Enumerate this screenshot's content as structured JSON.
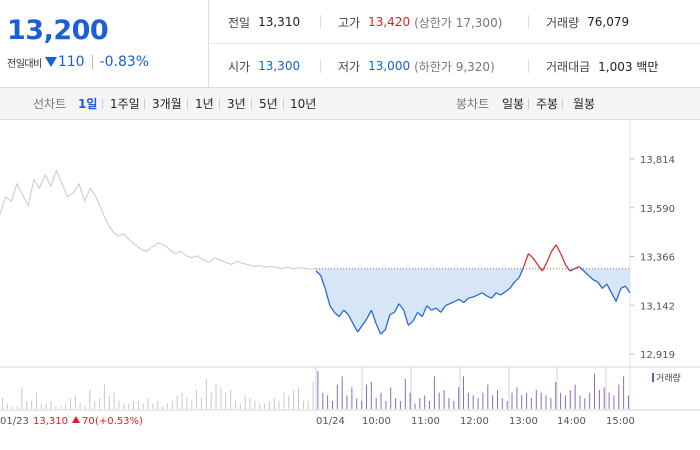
{
  "summary": {
    "current_price": "13,200",
    "change_label": "전일대비",
    "change_amount": "110",
    "change_percent": "-0.83%"
  },
  "stats": {
    "prev_close_label": "전일",
    "prev_close": "13,310",
    "high_label": "고가",
    "high": "13,420",
    "upper_limit": "(상한가 17,300)",
    "volume_label": "거래량",
    "volume": "76,079",
    "open_label": "시가",
    "open": "13,300",
    "low_label": "저가",
    "low": "13,000",
    "lower_limit": "(하한가 9,320)",
    "trade_value_label": "거래대금",
    "trade_value": "1,003 백만"
  },
  "toolbar": {
    "line_label": "선차트",
    "periods": [
      "1일",
      "1주일",
      "3개월",
      "1년",
      "3년",
      "5년",
      "10년"
    ],
    "active_period": "1일",
    "candle_label": "봉차트",
    "candles": [
      "일봉",
      "주봉",
      "월봉"
    ]
  },
  "colors": {
    "up": "#e02020",
    "down": "#1a5fd6",
    "fill": "#d6e6f7",
    "prev_day_line": "#c8c8c8"
  },
  "chart_data": {
    "type": "line",
    "y_ticks": [
      "13,814",
      "13,590",
      "13,366",
      "13,142",
      "12,919"
    ],
    "ylim": [
      12919,
      13814
    ],
    "base_price": 13310,
    "x_ticks": [
      "01/24",
      "10:00",
      "11:00",
      "12:00",
      "13:00",
      "14:00",
      "15:00"
    ],
    "prev_day_label": "01/23",
    "prev_day_close": "13,310",
    "prev_day_change": "70",
    "prev_day_change_pct": "(+0.53%)",
    "volume_legend": "거래량",
    "prev_day_series": [
      13560,
      13640,
      13620,
      13700,
      13650,
      13600,
      13720,
      13680,
      13740,
      13690,
      13760,
      13700,
      13640,
      13660,
      13700,
      13620,
      13680,
      13640,
      13580,
      13520,
      13480,
      13460,
      13470,
      13440,
      13420,
      13400,
      13390,
      13410,
      13430,
      13420,
      13400,
      13380,
      13390,
      13370,
      13360,
      13370,
      13350,
      13340,
      13360,
      13350,
      13340,
      13330,
      13345,
      13335,
      13330,
      13320,
      13325,
      13318,
      13322,
      13315,
      13312,
      13318,
      13310,
      13315,
      13312,
      13308,
      13310
    ],
    "today_series": [
      13300,
      13280,
      13220,
      13140,
      13110,
      13090,
      13120,
      13100,
      13060,
      13020,
      13050,
      13080,
      13120,
      13060,
      13010,
      13030,
      13100,
      13110,
      13150,
      13120,
      13050,
      13070,
      13110,
      13090,
      13140,
      13120,
      13130,
      13110,
      13140,
      13150,
      13160,
      13170,
      13155,
      13175,
      13180,
      13190,
      13200,
      13185,
      13175,
      13200,
      13190,
      13205,
      13220,
      13250,
      13270,
      13320,
      13380,
      13360,
      13330,
      13300,
      13340,
      13390,
      13420,
      13380,
      13330,
      13300,
      13310,
      13320,
      13300,
      13280,
      13260,
      13250,
      13220,
      13240,
      13200,
      13160,
      13220,
      13230,
      13200
    ],
    "volume_series": [
      4,
      2,
      1,
      1,
      8,
      3,
      3,
      6,
      2,
      2,
      3,
      1,
      1,
      2,
      4,
      5,
      2,
      1,
      7,
      3,
      4,
      9,
      5,
      6,
      3,
      2,
      2,
      3,
      3,
      2,
      4,
      2,
      3,
      1,
      2,
      3,
      5,
      6,
      4,
      3,
      7,
      4,
      11,
      6,
      9,
      8,
      6,
      7,
      3,
      2,
      5,
      4,
      3,
      2,
      2,
      3,
      4,
      3,
      6,
      5,
      7,
      8,
      3,
      3,
      10,
      14,
      6,
      5,
      3,
      9,
      12,
      5,
      8,
      4,
      3,
      9,
      10,
      4,
      6,
      3,
      8,
      4,
      3,
      11,
      6,
      2,
      4,
      5,
      3,
      12,
      6,
      7,
      4,
      3,
      8,
      12,
      6,
      5,
      4,
      6,
      9,
      5,
      7,
      4,
      3,
      6,
      8,
      5,
      6,
      4,
      7,
      6,
      5,
      4,
      10,
      6,
      5,
      7,
      9,
      5,
      4,
      6,
      13,
      7,
      8,
      6,
      5,
      9,
      12,
      5
    ]
  }
}
